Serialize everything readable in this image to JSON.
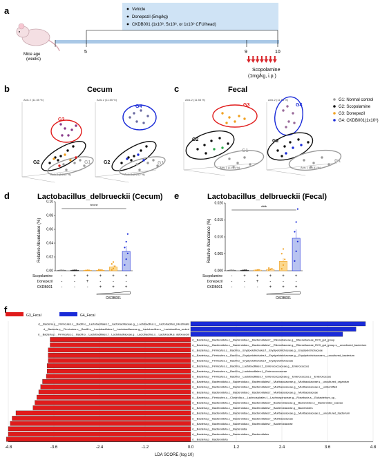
{
  "panels": {
    "a": "a",
    "b": "b",
    "c": "c",
    "d": "d",
    "e": "e",
    "f": "f"
  },
  "timeline": {
    "treatments": [
      "Vehicle",
      "Donepezil (5mg/kg)",
      "CKDB001 (1x10⁸, 5x10⁸, or 1x10⁹ CFU/head)"
    ],
    "age_label": "Mice age\n(weeks)",
    "ticks": [
      "5",
      "9",
      "10"
    ],
    "scop_label": "Scopolamine",
    "scop_dose": "(1mg/kg, i.p.)"
  },
  "pcoa": {
    "cecum_title": "Cecum",
    "fecal_title": "Fecal",
    "axis_y": "Axis 2 (11.55 %)",
    "axis_x": "Axis 3 (0.252 %)",
    "axis_x_c": "Axis 1 (13.51 %)",
    "groups": [
      "G1",
      "G2",
      "G3",
      "G4"
    ],
    "colors": {
      "g1": "#9a9a9a",
      "g2": "#111111",
      "g3": "#e01b1b",
      "g4": "#1a2bd8",
      "orange": "#f0a020"
    },
    "legend": [
      {
        "color": "#9a9a9a",
        "label": "G1: Normal control"
      },
      {
        "color": "#111111",
        "label": "G2: Scopolamine"
      },
      {
        "color": "#f0a020",
        "label": "G3: Donepezil"
      },
      {
        "color": "#1a2bd8",
        "label": "G4: CKDB001(1x10⁹)"
      }
    ]
  },
  "bar_d": {
    "title": "Lactobacillus_delbrueckii (Cecum)",
    "ylabel": "Relative Abundance (%)",
    "yticks": [
      "0.00",
      "0.02",
      "0.04",
      "0.06",
      "0.08",
      "0.10"
    ],
    "sig": "****",
    "values": [
      0.0003,
      0.0004,
      0.0005,
      0.0008,
      0.0055,
      0.028
    ]
  },
  "bar_e": {
    "title": "Lactobacillus_delbrueckii (Fecal)",
    "ylabel": "Relative Abundance (%)",
    "yticks": [
      "0.000",
      "0.005",
      "0.010",
      "0.015",
      "0.020"
    ],
    "sig": "***",
    "values": [
      0.0001,
      0.0001,
      0.0002,
      0.0004,
      0.0028,
      0.0096
    ]
  },
  "design_rows": {
    "labels": [
      "Scopolamine",
      "Donepezil",
      "CKDB001"
    ],
    "scop": [
      "-",
      "+",
      "+",
      "+",
      "+",
      "+"
    ],
    "done": [
      "-",
      "-",
      "+",
      "-",
      "-",
      "-"
    ],
    "ckdb": [
      "-",
      "-",
      "-",
      "+",
      "+",
      "+"
    ],
    "ckdb_label": "CKDB001"
  },
  "lefse": {
    "legend_g3": "G3_Fecal",
    "legend_g4": "G4_Fecal",
    "xlabel": "LDA SCORE (log 10)",
    "xticks": [
      "-4.8",
      "-3.6",
      "-2.4",
      "-1.2",
      "0.0",
      "1.2",
      "2.4",
      "3.6",
      "4.8"
    ],
    "bars": [
      {
        "value": 4.6,
        "label": "d__Bacteria.p__Firmicutes.c__Bacilli.o__Lactobacillales.f__Lactobacillaceae.g__Lactobacillus.s__Lactobacillus_intestinalis"
      },
      {
        "value": 4.35,
        "label": "d__Bacteria.p__Firmicutes.c__Bacilli.o__Lactobacillales.f__Lactobacillaceae.g__Lactobacillus.s__Lactobacillus_reuteri"
      },
      {
        "value": 4.0,
        "label": "d__Bacteria.p__Firmicutes.c__Bacilli.o__Lactobacillales.f__Lactobacillaceae.g__Lactobacillus.s__Lactobacillus_delbrueckii"
      },
      {
        "value": -3.7,
        "label": "d__Bacteria.p__Bacteroidota.c__Bacteroidia.o__Bacteroidales.f__Rikenellaceae.g__Rikenellaceae_RC9_gut_group"
      },
      {
        "value": -3.7,
        "label": "d__Bacteria.p__Bacteroidota.c__Bacteroidia.o__Bacteroidales.f__Rikenellaceae.g__Rikenellaceae_RC9_gut_group.s__uncultured_bacterium"
      },
      {
        "value": -3.75,
        "label": "d__Bacteria.p__Firmicutes.c__Bacilli.o__Erysipelotrichales.f__Erysipelotrichaceae.g__Erysipelotrichaceae"
      },
      {
        "value": -3.75,
        "label": "d__Bacteria.p__Firmicutes.c__Bacilli.o__Erysipelotrichales.f__Erysipelotrichaceae.g__Erysipelotrichaceae.s__uncultured_bacterium"
      },
      {
        "value": -3.75,
        "label": "d__Bacteria.p__Firmicutes.c__Bacilli.o__Erysipelotrichales.f__Erysipelotrichaceae"
      },
      {
        "value": -3.78,
        "label": "d__Bacteria.p__Firmicutes.c__Bacilli.o__Lactobacillales.f__Enterococcaceae.g__Enterococcus"
      },
      {
        "value": -3.78,
        "label": "d__Bacteria.p__Firmicutes.c__Bacilli.o__Lactobacillales.f__Enterococcaceae"
      },
      {
        "value": -3.8,
        "label": "d__Bacteria.p__Firmicutes.c__Bacilli.o__Lactobacillales.f__Enterococcaceae.g__Enterococcus.s__Enterococcus"
      },
      {
        "value": -3.9,
        "label": "d__Bacteria.p__Bacteroidota.c__Bacteroidia.o__Bacteroidales.f__Muribaculaceae.g__Muribaculaceae.s__uncultured_organism"
      },
      {
        "value": -3.95,
        "label": "d__Bacteria.p__Bacteroidota.c__Bacteroidia.o__Bacteroidales.f__Muribaculaceae.g__Muribaculaceae.s__unidentified"
      },
      {
        "value": -4.0,
        "label": "d__Bacteria.p__Bacteroidota.c__Bacteroidia.o__Bacteroidales.f__Muribaculaceae.g__Muribaculaceae"
      },
      {
        "value": -4.05,
        "label": "d__Bacteria.p__Firmicutes.c__Clostridia.o__Lachnospirales.f__Lachnospiraceae.g__Roseburia.s__Eubacterium_sp_"
      },
      {
        "value": -4.1,
        "label": "d__Bacteria.p__Bacteroidota.c__Bacteroidia.o__Bacteroidales.f__Bacteroidaceae.g__Bacteroides.s__Bacteroides_caecae"
      },
      {
        "value": -4.15,
        "label": "d__Bacteria.p__Bacteroidota.c__Bacteroidia.o__Bacteroidales.f__Bacteroidaceae.g__Bacteroides"
      },
      {
        "value": -4.6,
        "label": "d__Bacteria.p__Bacteroidota.c__Bacteroidia.o__Bacteroidales.f__Muribaculaceae.g__Muribaculaceae.s__uncultured_bacterium"
      },
      {
        "value": -4.7,
        "label": "d__Bacteria.p__Bacteroidota.c__Bacteroidia.o__Bacteroidales.f__Muribaculaceae"
      },
      {
        "value": -4.75,
        "label": "d__Bacteria.p__Bacteroidota.c__Bacteroidia.o__Bacteroidales.f__Bacteroidaceae"
      },
      {
        "value": -4.8,
        "label": "d__Bacteria.p__Bacteroidota.c__Bacteroidia"
      },
      {
        "value": -4.8,
        "label": "d__Bacteria.p__Bacteroidota.c__Bacteroidia.o__Bacteroidales"
      },
      {
        "value": -4.85,
        "label": "d__Bacteria.p__Bacteroidota"
      }
    ]
  },
  "chart_data": [
    {
      "type": "bar",
      "title": "Lactobacillus_delbrueckii (Cecum)",
      "ylabel": "Relative Abundance (%)",
      "ylim": [
        0,
        0.1
      ],
      "categories": [
        "1",
        "2",
        "3",
        "4",
        "5",
        "6"
      ],
      "values": [
        0.0003,
        0.0004,
        0.0005,
        0.0008,
        0.0055,
        0.028
      ]
    },
    {
      "type": "bar",
      "title": "Lactobacillus_delbrueckii (Fecal)",
      "ylabel": "Relative Abundance (%)",
      "ylim": [
        0,
        0.02
      ],
      "categories": [
        "1",
        "2",
        "3",
        "4",
        "5",
        "6"
      ],
      "values": [
        0.0001,
        0.0001,
        0.0002,
        0.0004,
        0.0028,
        0.0096
      ]
    },
    {
      "type": "bar",
      "xlabel": "LDA SCORE (log 10)",
      "xlim": [
        -4.8,
        4.8
      ],
      "legend": [
        "G3_Fecal",
        "G4_Fecal"
      ]
    }
  ]
}
